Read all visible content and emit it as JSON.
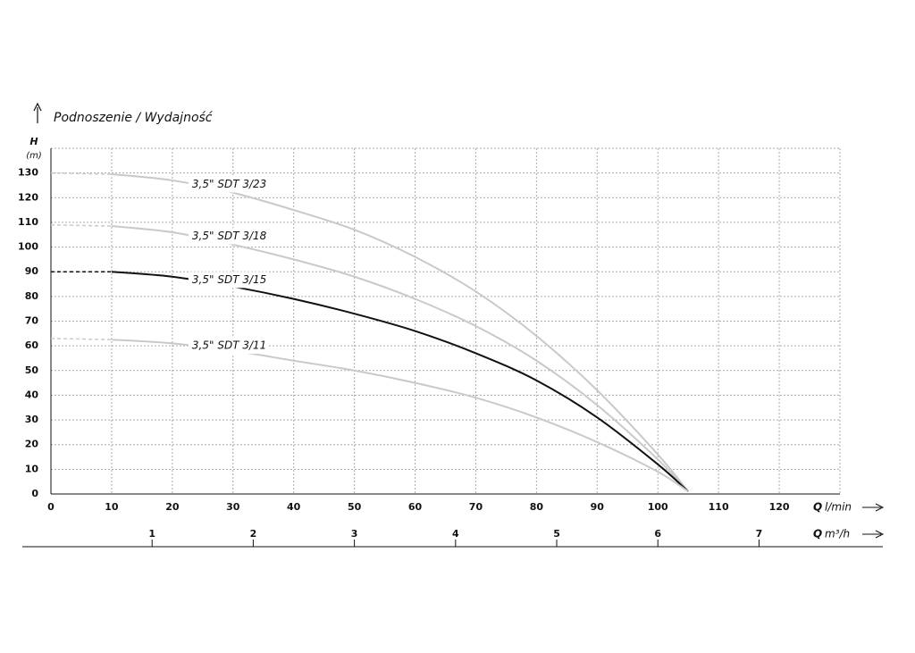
{
  "chart_data": {
    "type": "line",
    "title": "Podnoszenie / Wydajność",
    "y_label_symbol": "H",
    "y_label_unit": "(m)",
    "x_label_symbol": "Q",
    "x_label_unit": "l/min",
    "x2_label_symbol": "Q",
    "x2_label_unit": "m³/h",
    "xlim": [
      0,
      130
    ],
    "xticks": [
      0,
      10,
      20,
      30,
      40,
      50,
      60,
      70,
      80,
      90,
      100,
      110,
      120
    ],
    "x2lim": [
      0,
      7.8
    ],
    "x2ticks": [
      1,
      2,
      3,
      4,
      5,
      6,
      7
    ],
    "ylim": [
      0,
      140
    ],
    "yticks": [
      0,
      10,
      20,
      30,
      40,
      50,
      60,
      70,
      80,
      90,
      100,
      110,
      120,
      130
    ],
    "grid": true,
    "dashed_until_x": 10,
    "series": [
      {
        "name": "3,5\" SDT 3/23",
        "color": "#c9c9c9",
        "x": [
          0,
          10,
          20,
          30,
          40,
          50,
          60,
          70,
          80,
          90,
          100,
          105
        ],
        "values": [
          130,
          129.5,
          127,
          122,
          115,
          107,
          96,
          82,
          64,
          42,
          16,
          1
        ]
      },
      {
        "name": "3,5\" SDT 3/18",
        "color": "#c9c9c9",
        "x": [
          0,
          10,
          20,
          30,
          40,
          50,
          60,
          70,
          80,
          90,
          100,
          105
        ],
        "values": [
          109,
          108.5,
          106,
          101,
          95,
          88,
          79,
          68,
          54,
          36,
          14,
          1
        ]
      },
      {
        "name": "3,5\" SDT 3/15",
        "color": "#111111",
        "x": [
          0,
          10,
          20,
          30,
          40,
          50,
          60,
          70,
          80,
          90,
          100,
          105
        ],
        "values": [
          90,
          90,
          88,
          84,
          79,
          73,
          66,
          57,
          46,
          31,
          12,
          1
        ]
      },
      {
        "name": "3,5\" SDT 3/11",
        "color": "#c9c9c9",
        "x": [
          0,
          10,
          20,
          30,
          40,
          50,
          60,
          70,
          80,
          90,
          100,
          105
        ],
        "values": [
          63,
          62.5,
          61,
          58,
          54,
          50,
          45,
          39,
          31,
          21,
          9,
          1
        ]
      }
    ]
  }
}
